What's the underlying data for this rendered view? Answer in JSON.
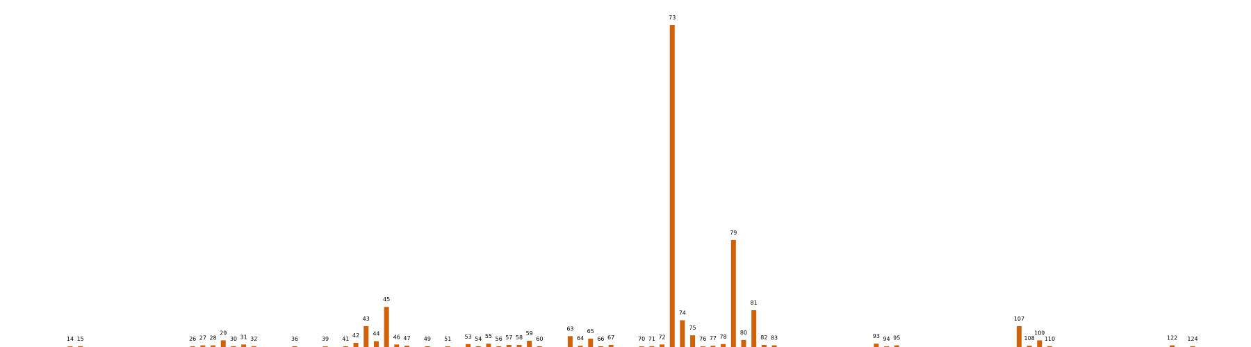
{
  "chart_data": {
    "type": "bar",
    "x": [
      14,
      15,
      26,
      27,
      28,
      29,
      30,
      31,
      32,
      36,
      39,
      41,
      42,
      43,
      44,
      45,
      46,
      47,
      49,
      51,
      53,
      54,
      55,
      56,
      57,
      58,
      59,
      60,
      63,
      64,
      65,
      66,
      67,
      70,
      71,
      72,
      73,
      74,
      75,
      76,
      77,
      78,
      79,
      80,
      81,
      82,
      83,
      93,
      94,
      95,
      107,
      108,
      109,
      110,
      122,
      124
    ],
    "values": [
      0.6,
      1,
      0.3,
      2,
      2,
      8,
      1,
      3,
      1,
      0.7,
      0.2,
      0.7,
      5,
      25,
      7,
      48,
      3,
      1.5,
      0.5,
      0.2,
      3.5,
      0.8,
      4,
      0.5,
      2.5,
      2.5,
      7.5,
      0.3,
      13,
      1.5,
      10,
      0.7,
      2.5,
      0.3,
      1,
      3,
      385,
      32,
      14,
      0.4,
      1.5,
      3.5,
      128,
      8.5,
      44,
      2.5,
      2,
      4,
      0.3,
      2,
      25,
      1.5,
      8,
      1,
      2,
      1
    ],
    "ylim": [
      0,
      395
    ],
    "grid": false,
    "bar_color": "#d0620c"
  }
}
